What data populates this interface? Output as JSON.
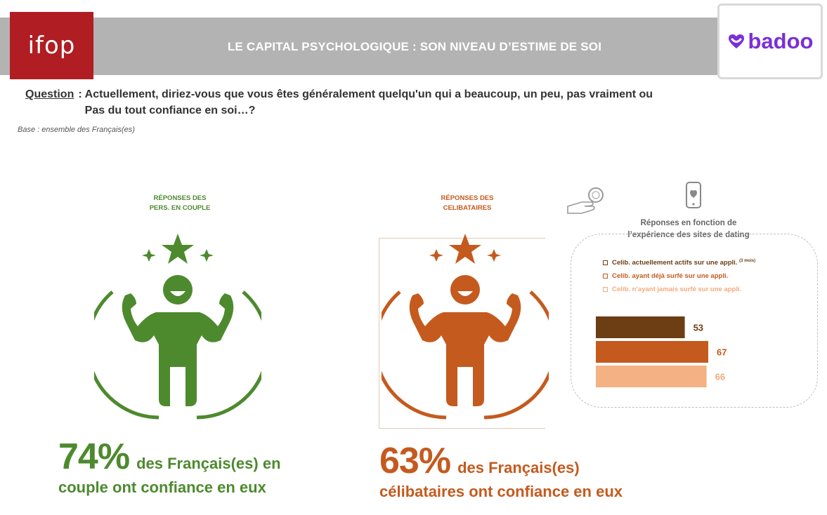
{
  "header": {
    "ifop_logo": "ifop",
    "title": "LE CAPITAL PSYCHOLOGIQUE : SON NIVEAU D’ESTIME DE SOI",
    "badoo_logo": "badoo"
  },
  "question": {
    "label": "Question",
    "separator": ":",
    "text": "Actuellement, diriez-vous que vous êtes généralement quelqu'un qui a beaucoup, un peu, pas vraiment ou Pas du tout confiance en soi…?",
    "base": "Base : ensemble des Français(es)"
  },
  "couple": {
    "heading_line1": "RÉPONSES DES",
    "heading_line2": "PERS. EN COUPLE",
    "percent": "74%",
    "text_a": "des Français(es) en",
    "text_b": "couple ont confiance en eux",
    "color": "#4d8a2e",
    "icon": "strong-person-icon"
  },
  "celib": {
    "heading_line1": "RÉPONSES DES",
    "heading_line2": "CELIBATAIRES",
    "percent": "63%",
    "text_a": "des Français(es)",
    "text_b": "célibataires ont confiance en eux",
    "color": "#c55a1e",
    "icon": "strong-person-icon"
  },
  "dating": {
    "title_line1": "Réponses en fonction de",
    "title_line2": "l’expérience des sites de dating",
    "icons": [
      "hand-search-icon",
      "phone-heart-icon"
    ]
  },
  "chart_data": {
    "type": "bar",
    "orientation": "horizontal",
    "title": "Réponses en fonction de l’expérience des sites de dating",
    "categories": [
      "Celib. actuellement actifs sur une appli.",
      "Celib. ayant déjà surfé sur une appli.",
      "Celib. n’ayant jamais surfé sur une appli."
    ],
    "category_notes": [
      "(3 mois)",
      "",
      ""
    ],
    "values": [
      53,
      67,
      66
    ],
    "colors": [
      "#6d3d14",
      "#c55a1e",
      "#f4b183"
    ],
    "label_colors": [
      "#6d3d14",
      "#c55a1e",
      "#f4a97c"
    ],
    "grid": false,
    "legend": "top"
  }
}
